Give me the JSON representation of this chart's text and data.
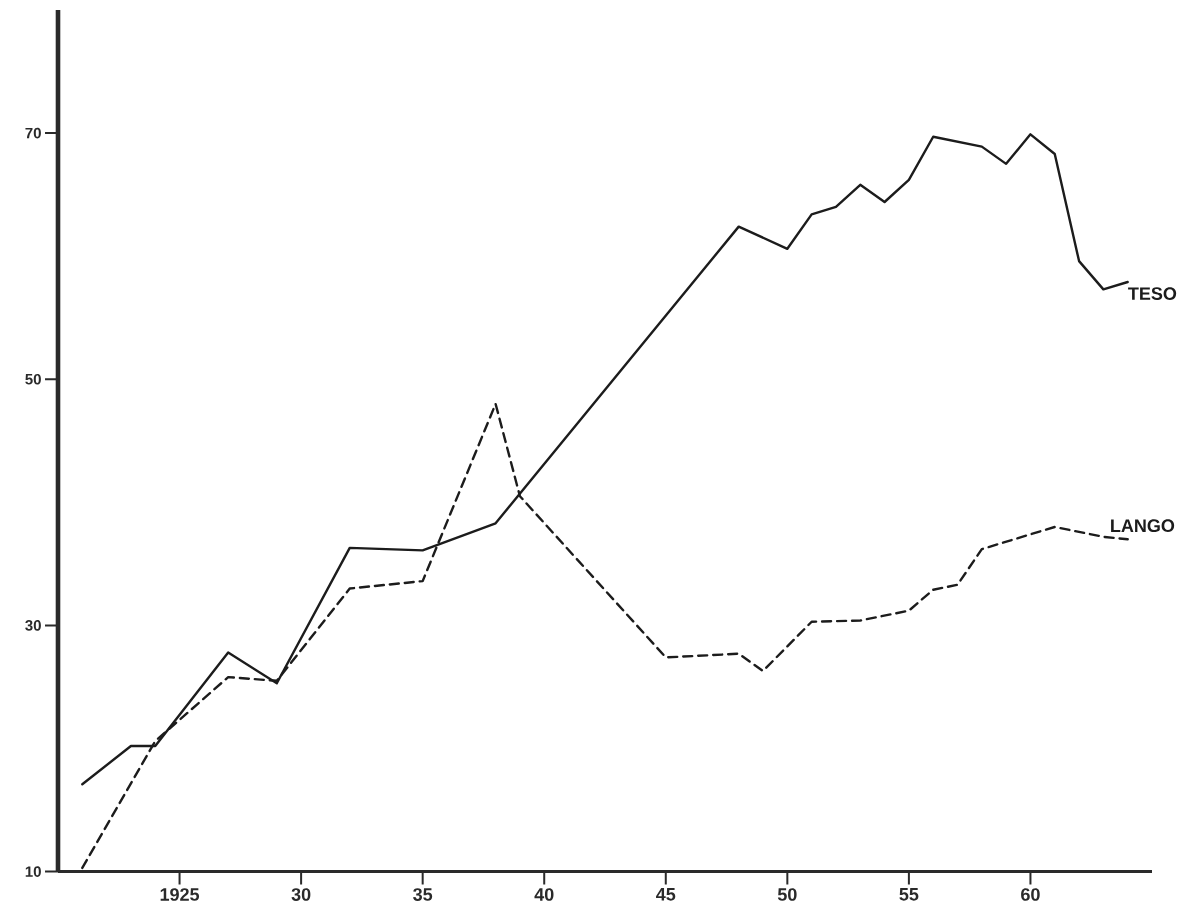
{
  "chart_data": {
    "type": "line",
    "series": [
      {
        "name": "TESO",
        "color": "#1c1c1c",
        "line_style": "solid",
        "x": [
          1921,
          1923,
          1924,
          1927,
          1929,
          1932,
          1935,
          1938,
          1948,
          1950,
          1951,
          1952,
          1953,
          1954,
          1955,
          1956,
          1958,
          1959,
          1960,
          1961,
          1962,
          1963,
          1964
        ],
        "values": [
          17.1,
          20.2,
          20.2,
          27.8,
          25.3,
          36.3,
          36.1,
          38.3,
          62.4,
          60.6,
          63.4,
          64.0,
          65.8,
          64.4,
          66.2,
          69.7,
          68.9,
          67.5,
          69.9,
          68.3,
          59.6,
          57.3,
          57.9
        ]
      },
      {
        "name": "LANGO",
        "color": "#1c1c1c",
        "line_style": "dashed",
        "x": [
          1921,
          1924,
          1927,
          1929,
          1932,
          1935,
          1938,
          1939,
          1945,
          1948,
          1949,
          1951,
          1953,
          1955,
          1956,
          1957,
          1958,
          1961,
          1963,
          1964
        ],
        "values": [
          10.3,
          20.6,
          25.8,
          25.5,
          33.0,
          33.6,
          48.0,
          40.5,
          27.4,
          27.7,
          26.3,
          30.3,
          30.4,
          31.2,
          32.9,
          33.3,
          36.2,
          38.0,
          37.2,
          37.0
        ]
      }
    ],
    "xlim": [
      1920,
      1965
    ],
    "ylim": [
      10,
      80
    ],
    "xticks": [
      1925,
      {
        "value": 1930,
        "label": "30"
      },
      {
        "value": 1935,
        "label": "35"
      },
      {
        "value": 1940,
        "label": "40"
      },
      {
        "value": 1945,
        "label": "45"
      },
      {
        "value": 1950,
        "label": "50"
      },
      {
        "value": 1955,
        "label": "55"
      },
      {
        "value": 1960,
        "label": "60"
      }
    ],
    "yticks": [
      10,
      30,
      50,
      70
    ]
  }
}
